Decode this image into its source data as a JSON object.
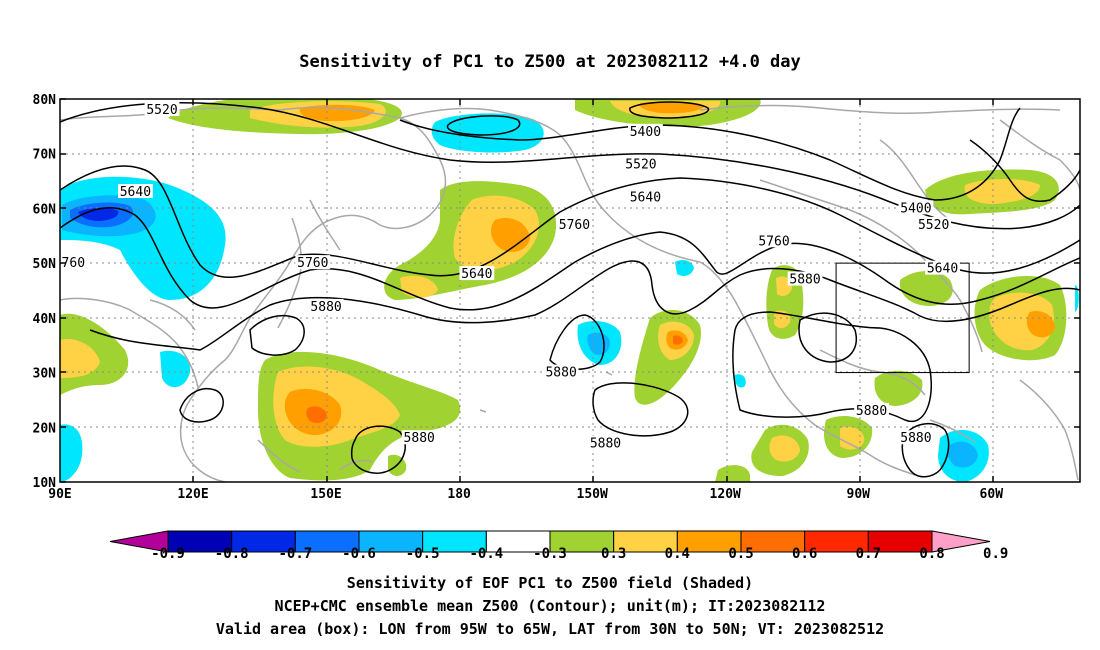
{
  "title": "Sensitivity of PC1 to Z500 at 2023082112 +4.0 day",
  "lat_labels": [
    "80N",
    "70N",
    "60N",
    "50N",
    "40N",
    "30N",
    "20N",
    "10N"
  ],
  "lon_labels": [
    "90E",
    "120E",
    "150E",
    "180",
    "150W",
    "120W",
    "90W",
    "60W"
  ],
  "contour_labels": [
    {
      "text": "5520",
      "lon": 113,
      "lat": 78
    },
    {
      "text": "5640",
      "lon": 107,
      "lat": 63
    },
    {
      "text": "760",
      "lon": 93,
      "lat": 50
    },
    {
      "text": "5760",
      "lon": 147,
      "lat": 50
    },
    {
      "text": "5880",
      "lon": 150,
      "lat": 42
    },
    {
      "text": "5640",
      "lon": 184,
      "lat": 48
    },
    {
      "text": "5760",
      "lon": 206,
      "lat": 57
    },
    {
      "text": "5400",
      "lon": 222,
      "lat": 74
    },
    {
      "text": "5520",
      "lon": 221,
      "lat": 68
    },
    {
      "text": "5640",
      "lon": 222,
      "lat": 62
    },
    {
      "text": "5760",
      "lon": 251,
      "lat": 54
    },
    {
      "text": "5880",
      "lon": 258,
      "lat": 47
    },
    {
      "text": "5400",
      "lon": 283,
      "lat": 60
    },
    {
      "text": "5520",
      "lon": 287,
      "lat": 57
    },
    {
      "text": "5640",
      "lon": 289,
      "lat": 49
    },
    {
      "text": "5880",
      "lon": 203,
      "lat": 30
    },
    {
      "text": "5880",
      "lon": 171,
      "lat": 18
    },
    {
      "text": "5880",
      "lon": 213,
      "lat": 17
    },
    {
      "text": "5880",
      "lon": 273,
      "lat": 23
    },
    {
      "text": "5880",
      "lon": 283,
      "lat": 18
    }
  ],
  "colorbar": {
    "labels": [
      "-0.9",
      "-0.8",
      "-0.7",
      "-0.6",
      "-0.5",
      "-0.4",
      "-0.3",
      "0.3",
      "0.4",
      "0.5",
      "0.6",
      "0.7",
      "0.8",
      "0.9"
    ],
    "colors": [
      "#0000b4",
      "#0028e6",
      "#0a6eff",
      "#0ab4ff",
      "#00e6ff",
      "#ffffff",
      "#a0d232",
      "#ffd246",
      "#ffa000",
      "#ff6e00",
      "#ff2800",
      "#e60000"
    ],
    "low_extend_color": "#b4009b",
    "high_extend_color": "#ffa0c8"
  },
  "valid_box": {
    "lon_min": 265,
    "lon_max": 295,
    "lat_min": 30,
    "lat_max": 50
  },
  "caption": {
    "line1": "Sensitivity of EOF PC1 to Z500 field (Shaded)",
    "line2": "NCEP+CMC ensemble mean Z500 (Contour); unit(m); IT:2023082112",
    "line3": "Valid area (box): LON from 95W to 65W, LAT from 30N to 50N; VT: 2023082512"
  }
}
